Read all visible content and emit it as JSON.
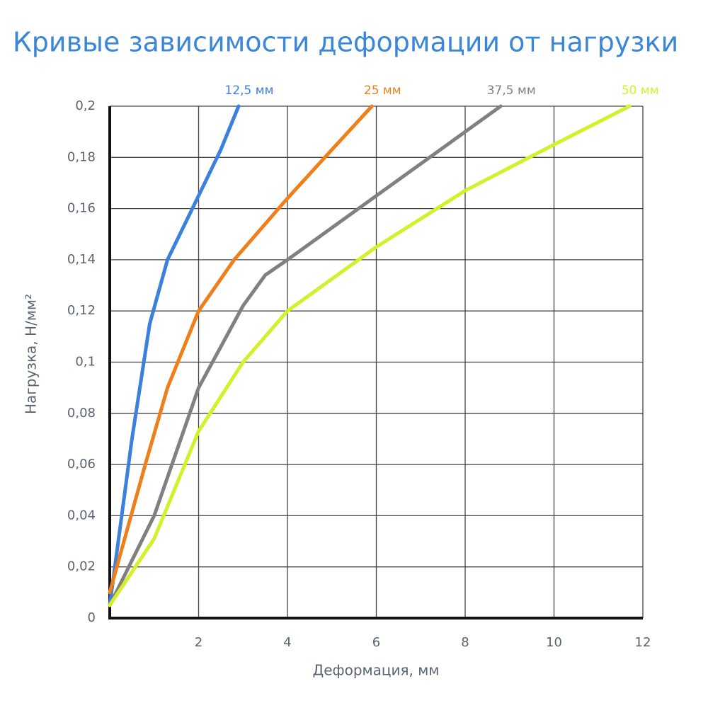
{
  "chart_data": {
    "type": "line",
    "title": "Кривые зависимости деформации от нагрузки",
    "x_label": "Деформация, мм",
    "y_label": "Нагрузка, Н/мм²",
    "xlim": [
      0,
      12
    ],
    "xticks": [
      2,
      4,
      6,
      8,
      10,
      12
    ],
    "ylim": [
      0,
      0.2
    ],
    "yticks": [
      0,
      {
        "value": 0.02,
        "label": "0,02"
      },
      {
        "value": 0.04,
        "label": "0,04"
      },
      {
        "value": 0.06,
        "label": "0,06"
      },
      {
        "value": 0.08,
        "label": "0,08"
      },
      {
        "value": 0.1,
        "label": "0,1"
      },
      {
        "value": 0.12,
        "label": "0,12"
      },
      {
        "value": 0.14,
        "label": "0,14"
      },
      {
        "value": 0.16,
        "label": "0,16"
      },
      {
        "value": 0.18,
        "label": "0,18"
      },
      {
        "value": 0.2,
        "label": "0,2"
      }
    ],
    "grid": true,
    "series": [
      {
        "name": "12,5 мм",
        "color": "#3a80dc",
        "x": [
          0,
          0.5,
          0.9,
          1.3,
          2,
          2.5,
          2.9
        ],
        "values": [
          0.005,
          0.07,
          0.115,
          0.14,
          0.165,
          0.183,
          0.2
        ]
      },
      {
        "name": "25 мм",
        "color": "#f07f1a",
        "x": [
          0,
          0.8,
          1.3,
          2,
          2.8,
          4,
          5,
          5.9
        ],
        "values": [
          0.01,
          0.06,
          0.09,
          0.12,
          0.14,
          0.164,
          0.183,
          0.2
        ]
      },
      {
        "name": "37,5 мм",
        "color": "#808080",
        "x": [
          0,
          1,
          2,
          3,
          3.5,
          4,
          6,
          8,
          8.8
        ],
        "values": [
          0.005,
          0.04,
          0.09,
          0.122,
          0.134,
          0.14,
          0.165,
          0.19,
          0.2
        ]
      },
      {
        "name": "50 мм",
        "color": "#d4f02a",
        "x": [
          0,
          1,
          2,
          3,
          4,
          6,
          8,
          10,
          11.7
        ],
        "values": [
          0.005,
          0.031,
          0.073,
          0.1,
          0.12,
          0.145,
          0.167,
          0.185,
          0.2
        ]
      }
    ]
  }
}
